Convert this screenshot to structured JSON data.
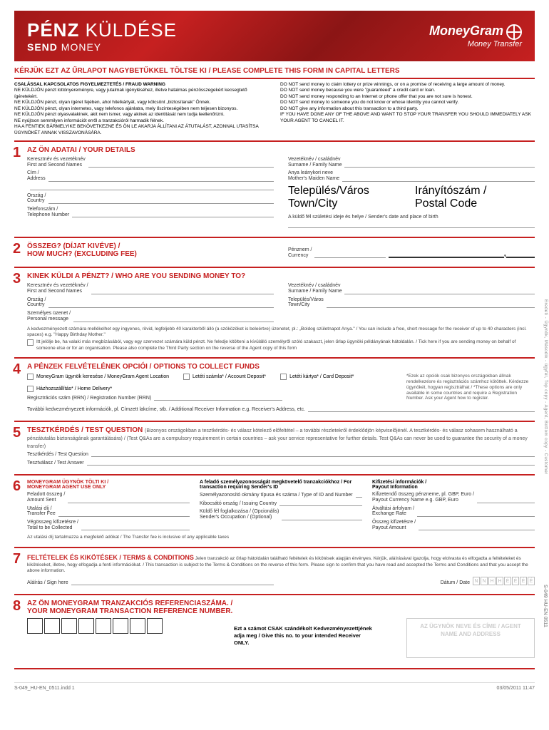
{
  "banner": {
    "t1_bold": "PÉNZ",
    "t1_light": "KÜLDÉSE",
    "t2_bold": "SEND",
    "t2_light": "MONEY",
    "brand": "MoneyGram",
    "brand_sub": "Money Transfer"
  },
  "heading": "KÉRJÜK EZT AZ ŰRLAPOT NAGYBETŰKKEL TÖLTSE KI / PLEASE COMPLETE THIS FORM IN CAPITAL LETTERS",
  "warning_left_title": "CSALÁSSAL KAPCSOLATOS FIGYELMEZTETÉS / FRAUD WARNING",
  "warning_left": "NE KÜLDJÖN pénzt lottónyereményre, vagy jutalmak igényléséhez, illetve hatalmas pénzösszegekért kecsegtető ígéretekért.\nNE KÜLDJÖN pénzt, olyan ígéret fejében, ahol hitelkártyát, vagy kölcsönt „biztosítanak\" Önnek.\nNE KÜLDJÖN pénzt, olyan internetes, vagy telefonos ajánlatra, mely őszinteségében nem teljesen bizonyos.\nNE KÜLDJÖN pénzt olyasvalakinek, akit nem ismer, vagy akinek az identitását nem tudja leellenőrizni.\nNE nyújtson semmilyen információt erről a tranzakcióról harmadik félnek.\nHA A FENTIEK BÁRMELYIKE BEKÖVETKEZNE ÉS ÖN LE AKARJA ÁLLÍTANI AZ ÁTUTALÁST, AZONNAL UTASÍTSA ÜGYNÖKÉT ANNAK VISSZAVONÁSÁRA.",
  "warning_right": "DO NOT send money to claim lottery or prize winnings, or on a promise of receiving a large amount of money.\nDO NOT send money because you were \"guaranteed\" a credit card or loan.\nDO NOT send money responding to an Internet or phone offer that you are not sure is honest.\nDO NOT send money to someone you do not know or whose identity you cannot verify.\nDO NOT give any information about this transaction to a third party.\nIF YOU HAVE DONE ANY OF THE ABOVE AND WANT TO STOP YOUR TRANSFER YOU SHOULD IMMEDIATELY ASK YOUR AGENT TO CANCEL IT.",
  "s1": {
    "num": "1",
    "title": "AZ ÖN ADATAI / YOUR DETAILS",
    "left": [
      "Keresztnév és vezetéknév\nFirst and Second Names",
      "Cím /\nAddress",
      "",
      "Ország /\nCountry",
      "Telefonszám /\nTelephone Number"
    ],
    "right": [
      "Vezetéknév / családnév\nSurname / Family Name",
      "Anya leánykori neve\nMother's Maiden Name"
    ],
    "r_split_l": "Település/Város\nTown/City",
    "r_split_r": "Irányítószám /\nPostal Code",
    "r_birth": "A küldő fél születési ideje és helye / Sender's date and place of birth"
  },
  "s2": {
    "num": "2",
    "title": "ÖSSZEG? (DÍJAT KIVÉVE) /\nHOW MUCH? (EXCLUDING FEE)",
    "curr": "Pénznem /\nCurrency"
  },
  "s3": {
    "num": "3",
    "title": "KINEK KÜLDI A PÉNZT? / WHO ARE YOU SENDING MONEY TO?",
    "left": [
      "Keresztnév és vezetéknév /\nFirst and Second Names",
      "Ország /\nCountry",
      "Személyes üzenet /\nPersonal message"
    ],
    "right": [
      "Vezetéknév / családnév\nSurname / Family Name",
      "Település/Város\nTown/City"
    ],
    "note": "A kedvezményezett számára mellékelhet egy ingyenes, rövid, legfeljebb 40 karakterből álló (a szóközöket is beleértve) üzenetet, pl.: „Boldog születnapot Anya.\" / You can include a free, short message for the receiver of up to 40 characters (incl. spaces) e.g. \"Happy Birthday Mother.\"",
    "note2": "Itt jelölje be, ha valaki más megbízásából, vagy egy szervezet számára küld pénzt. Ne feledje kitölteni a kívülálló személyről szóló szakaszt, jelen űrlap ügynöki példányának hátoldalán. / Tick here if you are sending money on behalf of someone else or for an organisation. Please also complete the Third Party section on the reverse of the Agent copy of this form"
  },
  "s4": {
    "num": "4",
    "title": "A PÉNZEK FELVÉTELÉNEK OPCIÓI / OPTIONS TO COLLECT FUNDS",
    "opts": [
      "MoneyGram ügynök keresése / MoneyGram Agent Location",
      "Letéti számla* / Account Deposit*",
      "Letéti kártya* / Card Deposit*",
      "Házhozszállítás* / Home Delivery*"
    ],
    "rrn": "Regisztrációs szám (RRN) / Registration Number (RRN)",
    "note_right": "*Ezek az opciók csak bizonyos országokban állnak rendelkezésre és regisztrációs számhoz kötöttek. Kérdezze ügynökét, hogyan regisztrálhat / *These options are only available in some countries and require a Registration Number. Ask your Agent how to register.",
    "addl": "További kedvezményezett információk, pl. Címzett lakcíme, stb. / Additional Receiver Information e.g. Receiver's Address, etc."
  },
  "s5": {
    "num": "5",
    "title": "TESZTKÉRDÉS / TEST QUESTION",
    "sub": "(Bizonyos országokban a tesztkérdés- és válasz kötelező előfeltétel – a további részletekről érdeklődjön képviselőjénél. A tesztkérdés- és válasz sohasem használható a pénzátutalás biztonságának garantálására) / (Test Q&As are a compulsory requirement in certain countries – ask your service representative for further details. Test Q&As can never be used to guarantee the security of a money transfer)",
    "q": "Tesztkérdés / Test Question",
    "a": "Tesztválasz / Test Answer"
  },
  "s6": {
    "num": "6",
    "title": "MONEYGRAM ÜGYNÖK TÖLTI KI /\nMONEYGRAM AGENT USE ONLY",
    "c1": [
      "Feladott összeg /\nAmount Sent",
      "Utalási díj /\nTransfer Fee",
      "Végösszeg kifizetésre /\nTotal to be Collected"
    ],
    "c2_head": "A feladó személyazonosságát megkövetelő tranzakciókhoz / For transaction requiring Sender's ID",
    "c2": [
      "Személyazonosító okmány típusa és száma / Type of ID and Number",
      "Kibocsátó ország / Issuing Country",
      "Küldő fél foglalkozása / (Opcionális)\nSender's Occupation / (Optional)"
    ],
    "c3_head": "Kifizetési információk /\nPayout Information",
    "c3": [
      "Kifizetendő összeg pénzneme, pl. GBP, Euro /\nPayout Currency Name e.g. GBP, Euro",
      "Átváltási árfolyam /\nExchange Rate",
      "Összeg kifizetésre /\nPayout Amount"
    ],
    "tax": "Az utalási díj tartalmazza a megfelelő adókat / The Transfer fee is inclusive of any applicable taxes"
  },
  "s7": {
    "num": "7",
    "title": "FELTÉTELEK ÉS KIKÖTÉSEK / TERMS & CONDITIONS",
    "body": "Jelen tranzakció az űrlap hátoldalán található feltételek és kikötések alapján érvényes. Kérjük, aláírásával igazolja, hogy elolvasta és elfogadta a feltételeket és kikötéseket, illetve, hogy elfogadja a fenti információkat. / This transaction is subject to the Terms & Conditions on the reverse of this form. Please sign to confirm that you have read and accepted the Terms and Conditions and that you accept the above information.",
    "sign": "Aláírás / Sign here",
    "date": "Dátum / Date",
    "date_ph": [
      "N",
      "N",
      "H",
      "H",
      "É",
      "É",
      "É",
      "É"
    ]
  },
  "s8": {
    "num": "8",
    "title": "AZ ÖN MONEYGRAM TRANZAKCIÓS REFERENCIASZÁMA. /\nYOUR MONEYGRAM TRANSACTION REFERENCE NUMBER.",
    "mid": "Ezt a számot CSAK szándékolt Kedvezményezettjének adja meg / Give this no. to your intended Receiver ONLY.",
    "agent": "AZ ÜGYNÖK NEVE ÉS CÍME / AGENT NAME AND ADDRESS"
  },
  "side": "Eredeti - Ügynök, Második - ügyfél, Top copy - Agent, Bottom copy - Customer",
  "side2": "S-049 HU-EN 0511",
  "footer": {
    "l": "S-049_HU-EN_0511.indd   1",
    "r": "03/05/2011   11:47"
  }
}
